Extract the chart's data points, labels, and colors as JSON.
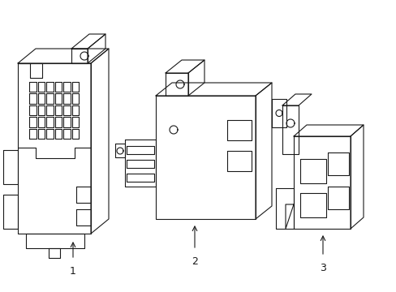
{
  "background_color": "#ffffff",
  "line_color": "#1a1a1a",
  "line_width": 0.8,
  "figsize": [
    4.89,
    3.6
  ],
  "dpi": 100
}
